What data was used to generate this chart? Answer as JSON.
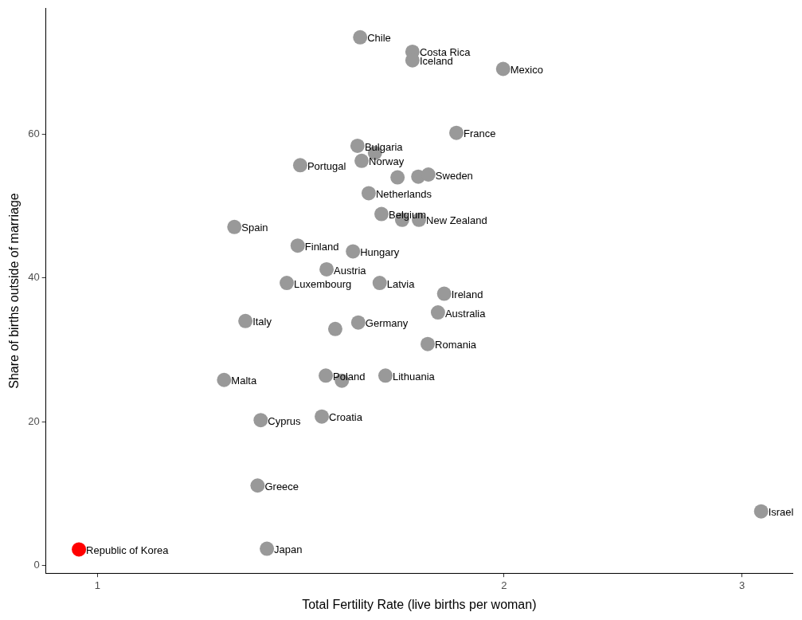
{
  "chart_data": {
    "type": "scatter",
    "xlabel": "Total Fertility Rate (live births per woman)",
    "ylabel": "Share of births outside of marriage",
    "log": "x",
    "grid": false,
    "legend": false,
    "marker": "circle",
    "xlim": [
      0.916,
      3.27
    ],
    "xticks": [
      1,
      2,
      3
    ],
    "ylim": [
      -1.1,
      77.5
    ],
    "yticks": [
      0,
      20,
      40,
      60
    ],
    "series": [
      {
        "color": "#999999",
        "x": [
          1.565,
          1.711,
          1.711,
          1.997,
          1.844,
          1.558,
          1.605,
          1.569,
          1.413,
          1.668,
          1.728,
          1.758,
          1.588,
          1.623,
          1.681,
          1.73,
          1.263,
          1.407,
          1.546,
          1.478,
          1.381,
          1.618,
          1.806,
          1.787,
          1.287,
          1.56,
          1.5,
          1.756,
          1.241,
          1.476,
          1.517,
          1.634,
          1.321,
          1.466,
          1.314,
          3.1,
          1.335
        ],
        "values": [
          73.5,
          71.5,
          70.3,
          69.1,
          60.2,
          58.4,
          57.4,
          56.3,
          55.7,
          54.0,
          54.1,
          54.4,
          51.8,
          48.9,
          48.1,
          48.1,
          47.1,
          44.5,
          43.7,
          41.2,
          39.3,
          39.3,
          37.8,
          35.2,
          34.0,
          33.8,
          32.9,
          30.8,
          25.8,
          26.4,
          25.7,
          26.4,
          20.2,
          20.7,
          11.1,
          7.5,
          2.3
        ]
      },
      {
        "color": "#ff0000",
        "x": [
          0.969
        ],
        "values": [
          2.2
        ]
      }
    ],
    "annotations": [
      {
        "text": "Chile",
        "x": 1.565,
        "y": 73.5
      },
      {
        "text": "Costa Rica",
        "x": 1.711,
        "y": 71.5
      },
      {
        "text": "Iceland",
        "x": 1.711,
        "y": 70.3
      },
      {
        "text": "Mexico",
        "x": 1.997,
        "y": 69.1
      },
      {
        "text": "France",
        "x": 1.844,
        "y": 60.2
      },
      {
        "text": "Bulgaria",
        "x": 1.558,
        "y": 58.4
      },
      {
        "text": "Norway",
        "x": 1.569,
        "y": 56.3
      },
      {
        "text": "Portugal",
        "x": 1.413,
        "y": 55.7
      },
      {
        "text": "Sweden",
        "x": 1.758,
        "y": 54.4
      },
      {
        "text": "Netherlands",
        "x": 1.588,
        "y": 51.8
      },
      {
        "text": "Belgium",
        "x": 1.623,
        "y": 48.9
      },
      {
        "text": "New Zealand",
        "x": 1.73,
        "y": 48.1
      },
      {
        "text": "Spain",
        "x": 1.263,
        "y": 47.1
      },
      {
        "text": "Finland",
        "x": 1.407,
        "y": 44.5
      },
      {
        "text": "Hungary",
        "x": 1.546,
        "y": 43.7
      },
      {
        "text": "Austria",
        "x": 1.478,
        "y": 41.2
      },
      {
        "text": "Luxembourg",
        "x": 1.381,
        "y": 39.3
      },
      {
        "text": "Latvia",
        "x": 1.618,
        "y": 39.3
      },
      {
        "text": "Ireland",
        "x": 1.806,
        "y": 37.8
      },
      {
        "text": "Australia",
        "x": 1.787,
        "y": 35.2
      },
      {
        "text": "Italy",
        "x": 1.287,
        "y": 34.0
      },
      {
        "text": "Germany",
        "x": 1.56,
        "y": 33.8
      },
      {
        "text": "Romania",
        "x": 1.756,
        "y": 30.8
      },
      {
        "text": "Malta",
        "x": 1.241,
        "y": 25.8
      },
      {
        "text": "Poland",
        "x": 1.476,
        "y": 26.4
      },
      {
        "text": "Lithuania",
        "x": 1.634,
        "y": 26.4
      },
      {
        "text": "Cyprus",
        "x": 1.321,
        "y": 20.2
      },
      {
        "text": "Croatia",
        "x": 1.466,
        "y": 20.7
      },
      {
        "text": "Greece",
        "x": 1.314,
        "y": 11.1
      },
      {
        "text": "Israel",
        "x": 3.1,
        "y": 7.5
      },
      {
        "text": "Japan",
        "x": 1.335,
        "y": 2.3
      },
      {
        "text": "Republic of Korea",
        "x": 0.969,
        "y": 2.2
      }
    ]
  }
}
